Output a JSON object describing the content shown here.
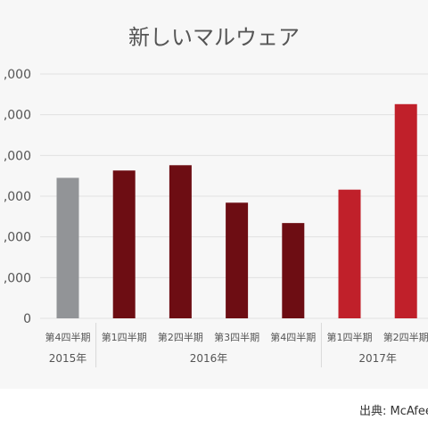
{
  "chart_data": {
    "type": "bar",
    "title": "新しいマルウェア",
    "xlabel": "",
    "ylabel": "",
    "ylim": [
      0,
      60000000
    ],
    "yticks": [
      0,
      10000000,
      20000000,
      30000000,
      40000000,
      50000000,
      60000000
    ],
    "ytick_labels": [
      "0",
      ",000",
      ",000",
      ",000",
      ",000",
      ",000",
      ",000"
    ],
    "categories": [
      "第4四半期",
      "第1四半期",
      "第2四半期",
      "第3四半期",
      "第4四半期",
      "第1四半期",
      "第2四半期"
    ],
    "values": [
      34500000,
      36300000,
      37600000,
      28400000,
      23400000,
      31600000,
      52600000
    ],
    "bar_colors": [
      "#929497",
      "#6d0d13",
      "#6d0d13",
      "#6d0d13",
      "#6d0d13",
      "#c0202a",
      "#c0202a"
    ],
    "year_groups": [
      {
        "label": "2015年",
        "start": 0,
        "end": 0
      },
      {
        "label": "2016年",
        "start": 1,
        "end": 4
      },
      {
        "label": "2017年",
        "start": 5,
        "end": 6
      }
    ],
    "grid": true,
    "legend": "none"
  },
  "source": "出典: McAfee"
}
